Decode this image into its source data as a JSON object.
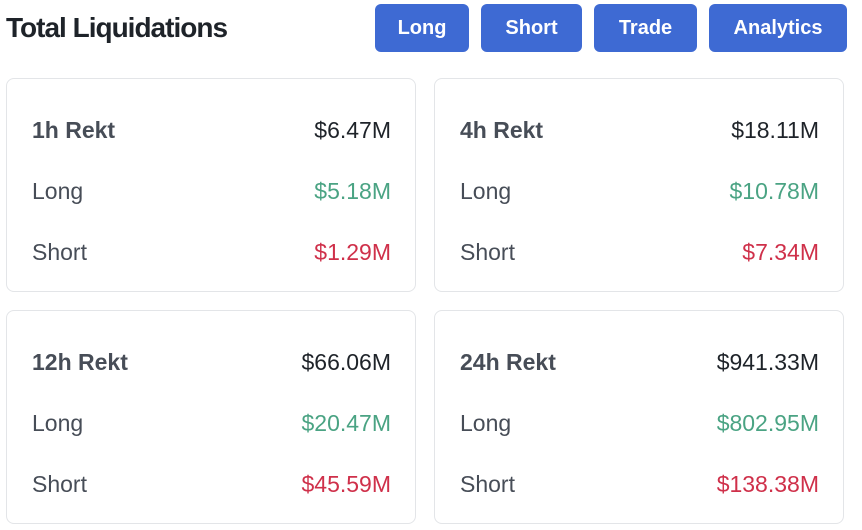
{
  "header": {
    "title": "Total Liquidations",
    "buttons": {
      "long": "Long",
      "short": "Short",
      "trade": "Trade",
      "analytics": "Analytics"
    }
  },
  "colors": {
    "button_bg": "#3e6ad3",
    "long_value": "#4aa383",
    "short_value": "#cf304a",
    "card_border": "#e3e5e8"
  },
  "cards": [
    {
      "title": "1h Rekt",
      "total": "$6.47M",
      "long_label": "Long",
      "long_value": "$5.18M",
      "short_label": "Short",
      "short_value": "$1.29M"
    },
    {
      "title": "4h Rekt",
      "total": "$18.11M",
      "long_label": "Long",
      "long_value": "$10.78M",
      "short_label": "Short",
      "short_value": "$7.34M"
    },
    {
      "title": "12h Rekt",
      "total": "$66.06M",
      "long_label": "Long",
      "long_value": "$20.47M",
      "short_label": "Short",
      "short_value": "$45.59M"
    },
    {
      "title": "24h Rekt",
      "total": "$941.33M",
      "long_label": "Long",
      "long_value": "$802.95M",
      "short_label": "Short",
      "short_value": "$138.38M"
    }
  ]
}
